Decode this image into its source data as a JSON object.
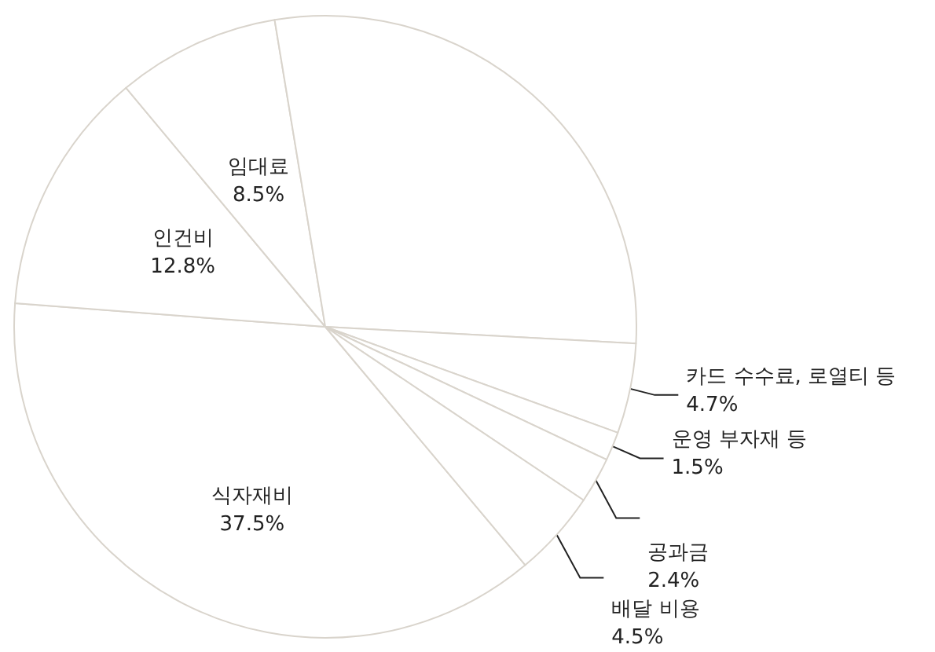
{
  "chart_data": {
    "type": "pie",
    "categories": [
      "식자재비",
      "인건비",
      "임대료",
      null,
      "카드 수수료, 로열티 등",
      "운영 부자재 등",
      "공과금",
      "배달 비용"
    ],
    "values": [
      37.5,
      12.8,
      8.5,
      28.6,
      4.7,
      1.5,
      2.4,
      4.5
    ],
    "value_labels": [
      "37.5%",
      "12.8%",
      "8.5%",
      null,
      "4.7%",
      "1.5%",
      "2.4%",
      "4.5%"
    ],
    "colors": [
      "#ffffff",
      "#ffffff",
      "#ffffff",
      "#ffffff",
      "#ffffff",
      "#ffffff",
      "#ffffff",
      "#ffffff"
    ],
    "legend": false
  }
}
